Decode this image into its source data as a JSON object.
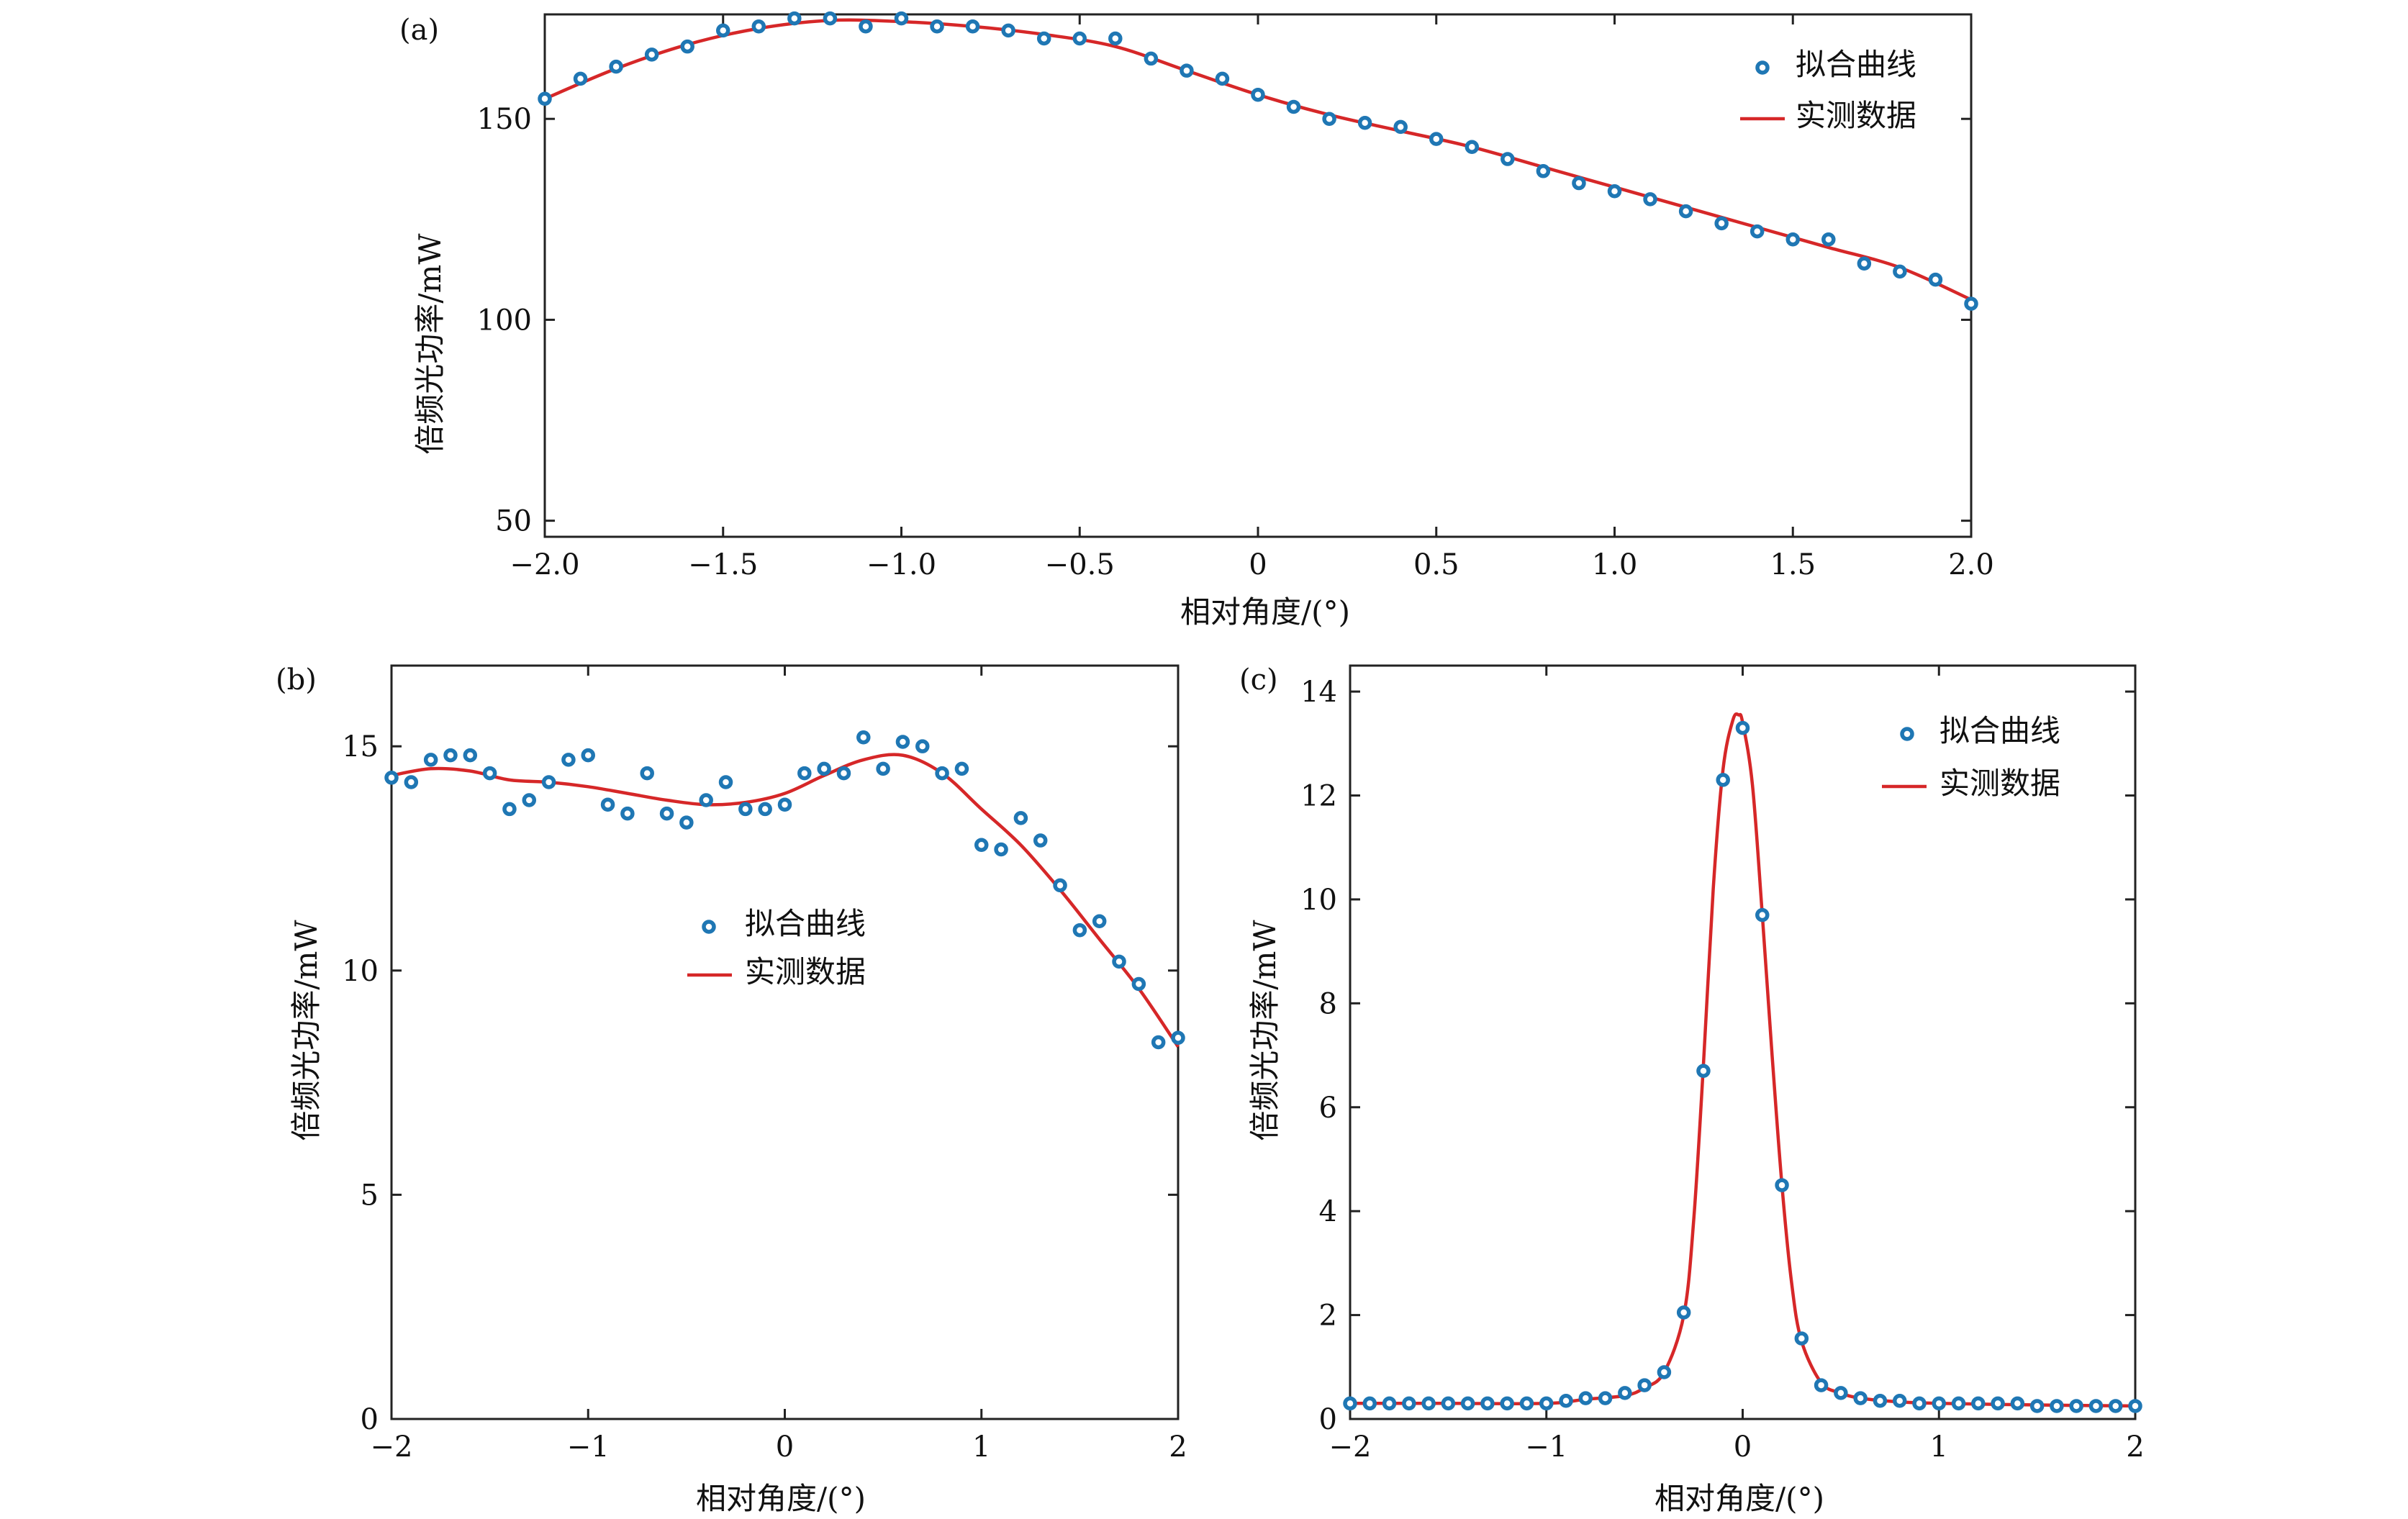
{
  "chart_data": [
    {
      "id": "a",
      "type": "scatter",
      "panel_label": "(a)",
      "title": "",
      "xlabel": "相对角度/(°)",
      "ylabel": "倍频光功率/mW",
      "xlim": [
        -2.0,
        2.0
      ],
      "ylim": [
        46,
        176
      ],
      "xticks": [
        -2.0,
        -1.5,
        -1.0,
        -0.5,
        0,
        0.5,
        1.0,
        1.5,
        2.0
      ],
      "xtick_labels": [
        "−2.0",
        "−1.5",
        "−1.0",
        "−0.5",
        "0",
        "0.5",
        "1.0",
        "1.5",
        "2.0"
      ],
      "yticks": [
        50,
        100,
        150
      ],
      "ytick_labels": [
        "50",
        "100",
        "150"
      ],
      "legend": {
        "position": "top-right",
        "scatter_label": "拟合曲线",
        "line_label": "实测数据"
      },
      "series": [
        {
          "name": "拟合曲线",
          "kind": "scatter",
          "x": [
            -2.0,
            -1.9,
            -1.8,
            -1.7,
            -1.6,
            -1.5,
            -1.4,
            -1.3,
            -1.2,
            -1.1,
            -1.0,
            -0.9,
            -0.8,
            -0.7,
            -0.6,
            -0.5,
            -0.4,
            -0.3,
            -0.2,
            -0.1,
            0.0,
            0.1,
            0.2,
            0.3,
            0.4,
            0.5,
            0.6,
            0.7,
            0.8,
            0.9,
            1.0,
            1.1,
            1.2,
            1.3,
            1.4,
            1.5,
            1.6,
            1.7,
            1.8,
            1.9,
            2.0
          ],
          "y": [
            155,
            160,
            163,
            166,
            168,
            172,
            173,
            175,
            175,
            173,
            175,
            173,
            173,
            172,
            170,
            170,
            170,
            165,
            162,
            160,
            156,
            153,
            150,
            149,
            148,
            145,
            143,
            140,
            137,
            134,
            132,
            130,
            127,
            124,
            122,
            120,
            120,
            114,
            112,
            110,
            104
          ]
        },
        {
          "name": "实测数据",
          "kind": "line",
          "x": [
            -2.0,
            -1.8,
            -1.6,
            -1.4,
            -1.2,
            -1.0,
            -0.8,
            -0.6,
            -0.4,
            -0.2,
            0.0,
            0.2,
            0.4,
            0.6,
            0.8,
            1.0,
            1.2,
            1.4,
            1.6,
            1.8,
            2.0
          ],
          "y": [
            155,
            162.5,
            168.5,
            172.5,
            174.5,
            174.2,
            173,
            171,
            168,
            162,
            156,
            151,
            147,
            143,
            138,
            133,
            128,
            123,
            118,
            113,
            105
          ]
        }
      ]
    },
    {
      "id": "b",
      "type": "scatter",
      "panel_label": "(b)",
      "title": "",
      "xlabel": "相对角度/(°)",
      "ylabel": "倍频光功率/mW",
      "xlim": [
        -2,
        2
      ],
      "ylim": [
        0,
        16.8
      ],
      "xticks": [
        -2,
        -1,
        0,
        1,
        2
      ],
      "xtick_labels": [
        "−2",
        "−1",
        "0",
        "1",
        "2"
      ],
      "yticks": [
        0,
        5,
        10,
        15
      ],
      "ytick_labels": [
        "0",
        "5",
        "10",
        "15"
      ],
      "legend": {
        "position": "center",
        "scatter_label": "拟合曲线",
        "line_label": "实测数据"
      },
      "series": [
        {
          "name": "拟合曲线",
          "kind": "scatter",
          "x": [
            -2.0,
            -1.9,
            -1.8,
            -1.7,
            -1.6,
            -1.5,
            -1.4,
            -1.3,
            -1.2,
            -1.1,
            -1.0,
            -0.9,
            -0.8,
            -0.7,
            -0.6,
            -0.5,
            -0.4,
            -0.3,
            -0.2,
            -0.1,
            0.0,
            0.1,
            0.2,
            0.3,
            0.4,
            0.5,
            0.6,
            0.7,
            0.8,
            0.9,
            1.0,
            1.1,
            1.2,
            1.3,
            1.4,
            1.5,
            1.6,
            1.7,
            1.8,
            1.9,
            2.0
          ],
          "y": [
            14.3,
            14.2,
            14.7,
            14.8,
            14.8,
            14.4,
            13.6,
            13.8,
            14.2,
            14.7,
            14.8,
            13.7,
            13.5,
            14.4,
            13.5,
            13.3,
            13.8,
            14.2,
            13.6,
            13.6,
            13.7,
            14.4,
            14.5,
            14.4,
            15.2,
            14.5,
            15.1,
            15.0,
            14.4,
            14.5,
            12.8,
            12.7,
            13.4,
            12.9,
            11.9,
            10.9,
            11.1,
            10.2,
            9.7,
            8.4,
            8.5
          ]
        },
        {
          "name": "实测数据",
          "kind": "line",
          "x": [
            -2.0,
            -1.8,
            -1.6,
            -1.4,
            -1.2,
            -1.0,
            -0.8,
            -0.6,
            -0.4,
            -0.2,
            0.0,
            0.2,
            0.4,
            0.6,
            0.8,
            1.0,
            1.2,
            1.4,
            1.6,
            1.8,
            2.0
          ],
          "y": [
            14.35,
            14.5,
            14.45,
            14.25,
            14.2,
            14.1,
            13.95,
            13.8,
            13.7,
            13.75,
            13.95,
            14.35,
            14.7,
            14.8,
            14.4,
            13.6,
            12.8,
            11.8,
            10.7,
            9.6,
            8.3
          ]
        }
      ]
    },
    {
      "id": "c",
      "type": "scatter",
      "panel_label": "(c)",
      "title": "",
      "xlabel": "相对角度/(°)",
      "ylabel": "倍频光功率/mW",
      "xlim": [
        -2,
        2
      ],
      "ylim": [
        0,
        14.5
      ],
      "xticks": [
        -2,
        -1,
        0,
        1,
        2
      ],
      "xtick_labels": [
        "−2",
        "−1",
        "0",
        "1",
        "2"
      ],
      "yticks": [
        0,
        2,
        4,
        6,
        8,
        10,
        12,
        14
      ],
      "ytick_labels": [
        "0",
        "2",
        "4",
        "6",
        "8",
        "10",
        "12",
        "14"
      ],
      "legend": {
        "position": "top-right",
        "scatter_label": "拟合曲线",
        "line_label": "实测数据"
      },
      "series": [
        {
          "name": "拟合曲线",
          "kind": "scatter",
          "x": [
            -2.0,
            -1.9,
            -1.8,
            -1.7,
            -1.6,
            -1.5,
            -1.4,
            -1.3,
            -1.2,
            -1.1,
            -1.0,
            -0.9,
            -0.8,
            -0.7,
            -0.6,
            -0.5,
            -0.4,
            -0.3,
            -0.2,
            -0.1,
            0.0,
            0.1,
            0.2,
            0.3,
            0.4,
            0.5,
            0.6,
            0.7,
            0.8,
            0.9,
            1.0,
            1.1,
            1.2,
            1.3,
            1.4,
            1.5,
            1.6,
            1.7,
            1.8,
            1.9,
            2.0
          ],
          "y": [
            0.3,
            0.3,
            0.3,
            0.3,
            0.3,
            0.3,
            0.3,
            0.3,
            0.3,
            0.3,
            0.3,
            0.35,
            0.4,
            0.4,
            0.5,
            0.65,
            0.9,
            2.05,
            6.7,
            12.3,
            13.3,
            9.7,
            4.5,
            1.55,
            0.65,
            0.5,
            0.4,
            0.35,
            0.35,
            0.3,
            0.3,
            0.3,
            0.3,
            0.3,
            0.3,
            0.25,
            0.25,
            0.25,
            0.25,
            0.25,
            0.25
          ]
        },
        {
          "name": "实测数据",
          "kind": "line",
          "x": [
            -2.0,
            -1.5,
            -1.0,
            -0.8,
            -0.6,
            -0.5,
            -0.4,
            -0.3,
            -0.25,
            -0.2,
            -0.15,
            -0.1,
            -0.05,
            -0.02,
            0.0,
            0.05,
            0.1,
            0.15,
            0.2,
            0.25,
            0.3,
            0.4,
            0.5,
            0.6,
            0.8,
            1.0,
            1.5,
            2.0
          ],
          "y": [
            0.3,
            0.3,
            0.3,
            0.38,
            0.45,
            0.6,
            0.9,
            2.0,
            3.8,
            6.8,
            10.2,
            12.5,
            13.45,
            13.55,
            13.4,
            12.2,
            9.7,
            7.0,
            4.5,
            2.6,
            1.5,
            0.7,
            0.5,
            0.4,
            0.33,
            0.3,
            0.27,
            0.25
          ]
        }
      ]
    }
  ]
}
